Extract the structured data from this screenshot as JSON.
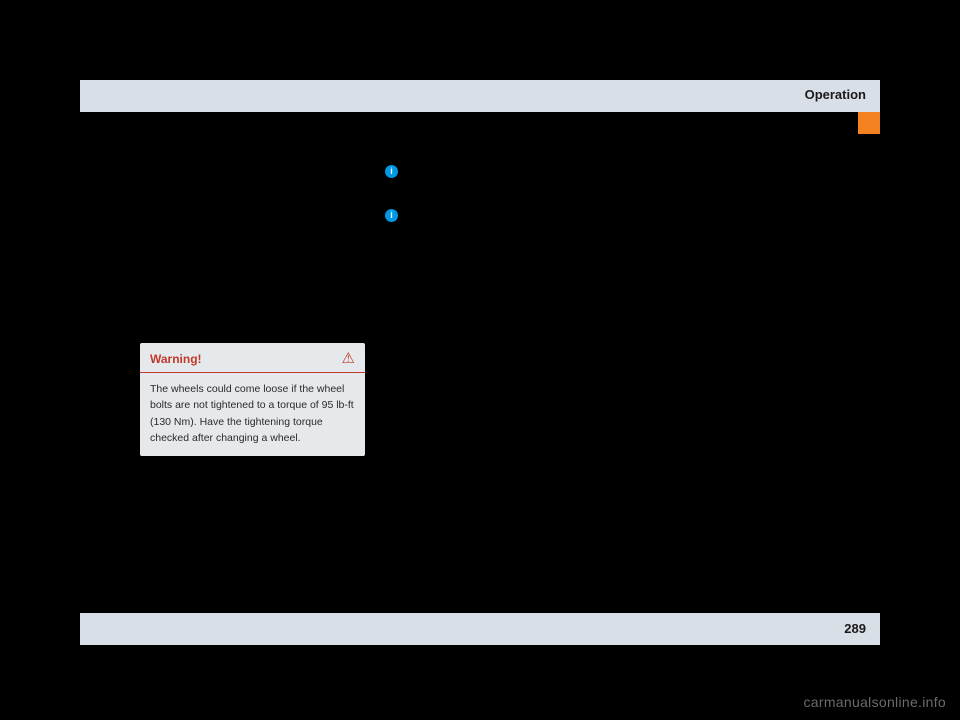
{
  "header": {
    "title": "Operation"
  },
  "footer": {
    "page_number": "289"
  },
  "warning_box": {
    "title": "Warning!",
    "body": "The wheels could come loose if the wheel bolts are not tightened to a torque of 95 lb-ft (130 Nm). Have the tightening torque checked after changing a wheel."
  },
  "watermark": "carmanualsonline.info",
  "icons": {
    "info_glyph": "i",
    "triangle_glyph": "⚠"
  },
  "colors": {
    "bg": "#000000",
    "bar_bg": "#d9dfe6",
    "tab": "#f58220",
    "info_icon_bg": "#0099e5",
    "warning_color": "#c0392b",
    "warning_box_bg": "#e6e9ec",
    "watermark_color": "#6b6b6b"
  }
}
